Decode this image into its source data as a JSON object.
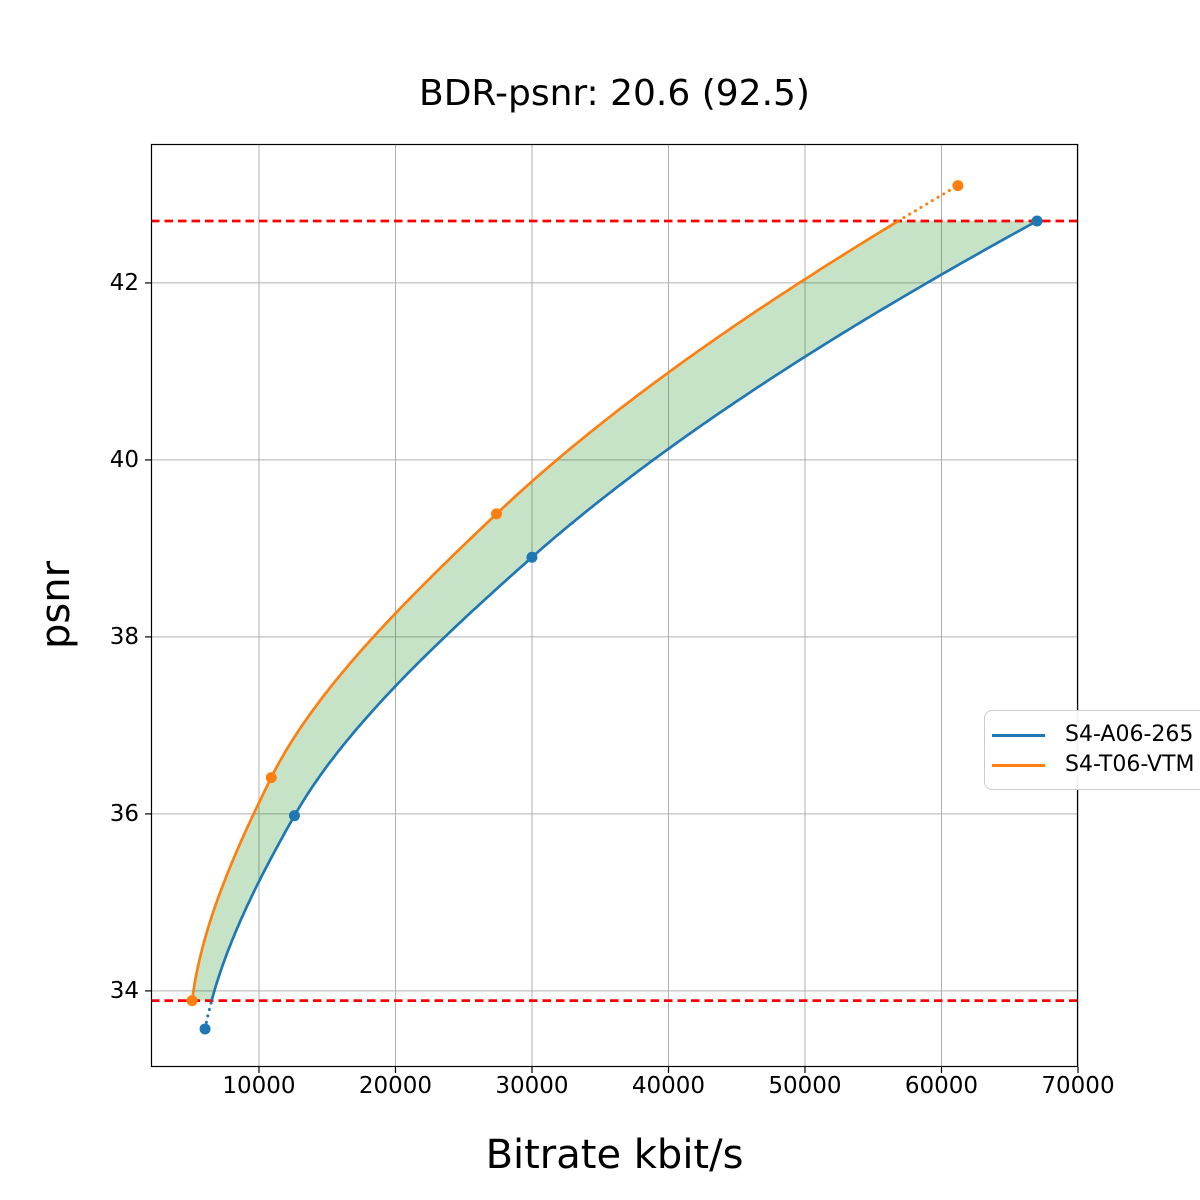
{
  "chart_data": {
    "type": "line",
    "title": "BDR-psnr: 20.6 (92.5)",
    "xlabel": "Bitrate kbit/s",
    "ylabel": "psnr",
    "xlim": [
      2090,
      70000
    ],
    "ylim": [
      33.14,
      43.57
    ],
    "xticks": [
      10000,
      20000,
      30000,
      40000,
      50000,
      60000,
      70000
    ],
    "yticks": [
      34,
      36,
      38,
      40,
      42
    ],
    "grid": true,
    "grid_color": "#b0b0b0",
    "series": [
      {
        "name": "S4-A06-265",
        "color": "#1f77b4",
        "bitrate": [
          6050,
          12600,
          30000,
          67000
        ],
        "psnr": [
          33.57,
          35.98,
          38.9,
          42.7
        ]
      },
      {
        "name": "S4-T06-VTM",
        "color": "#ff7f0e",
        "bitrate": [
          5100,
          10900,
          27400,
          61200
        ],
        "psnr": [
          33.89,
          36.41,
          39.39,
          43.1
        ]
      }
    ],
    "bd_overlap": {
      "psnr_low": 33.89,
      "psnr_high": 42.7,
      "line_color": "#ff0000",
      "line_style": "dashed",
      "fill_color": "#008000",
      "fill_opacity": 0.22
    },
    "legend": {
      "location": "center right",
      "entries": [
        "S4-A06-265",
        "S4-T06-VTM"
      ]
    }
  }
}
